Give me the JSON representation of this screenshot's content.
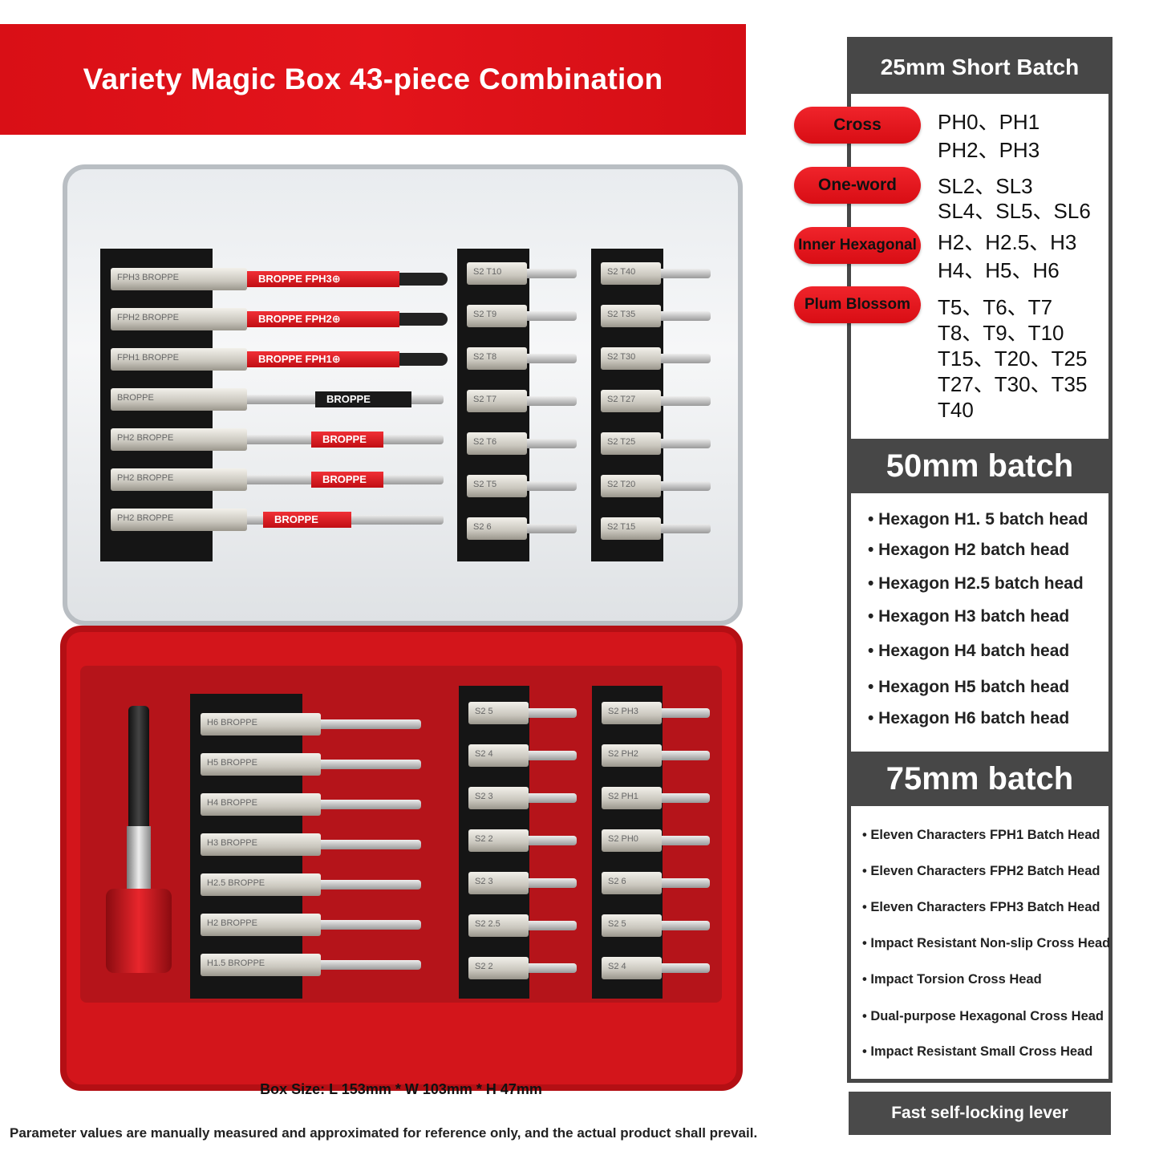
{
  "banner": {
    "title": "Variety Magic Box 43-piece Combination"
  },
  "panel": {
    "short_header": "25mm Short Batch",
    "categories": [
      {
        "label": "Cross",
        "codes": [
          "PH0、PH1",
          "PH2、PH3"
        ]
      },
      {
        "label": "One-word",
        "codes": [
          "SL2、SL3",
          "SL4、SL5、SL6"
        ]
      },
      {
        "label": "Inner Hexagonal",
        "codes": [
          "H2、H2.5、H3",
          "H4、H5、H6"
        ]
      },
      {
        "label": "Plum Blossom",
        "codes": [
          "T5、T6、T7",
          "T8、T9、T10",
          "T15、T20、T25",
          "T27、T30、T35",
          "T40"
        ]
      }
    ],
    "mid_header": "50mm batch",
    "mid_items": [
      "Hexagon H1. 5 batch head",
      "Hexagon H2 batch head",
      "Hexagon H2.5 batch head",
      "Hexagon H3 batch head",
      "Hexagon H4 batch head",
      "Hexagon H5 batch head",
      "Hexagon H6 batch head"
    ],
    "long_header": "75mm batch",
    "long_items": [
      "Eleven Characters FPH1 Batch Head",
      "Eleven Characters FPH2 Batch Head",
      "Eleven Characters FPH3 Batch Head",
      "Impact Resistant Non-slip Cross Head",
      "Impact Torsion Cross Head",
      "Dual-purpose Hexagonal Cross Head",
      "Impact Resistant Small Cross Head"
    ]
  },
  "lever_label": "Fast self-locking lever",
  "box_size": "Box Size: L 153mm * W 103mm * H 47mm",
  "disclaimer": "Parameter values are manually measured and approximated for reference only, and the actual product shall prevail.",
  "product": {
    "lid_long_bits": [
      {
        "base": "FPH3  BROPPE",
        "band": "BROPPE FPH3⊕"
      },
      {
        "base": "FPH2  BROPPE",
        "band": "BROPPE FPH2⊕"
      },
      {
        "base": "FPH1  BROPPE",
        "band": "BROPPE FPH1⊕"
      },
      {
        "base": "BROPPE",
        "band": "BROPPE"
      },
      {
        "base": "PH2  BROPPE",
        "band": "BROPPE"
      },
      {
        "base": "PH2  BROPPE",
        "band": "BROPPE"
      },
      {
        "base": "PH2  BROPPE",
        "band": "BROPPE"
      }
    ],
    "lid_col1": [
      "S2 T10",
      "S2 T9",
      "S2 T8",
      "S2 T7",
      "S2 T6",
      "S2 T5",
      "S2 6"
    ],
    "lid_col2": [
      "S2 T40",
      "S2 T35",
      "S2 T30",
      "S2 T27",
      "S2 T25",
      "S2 T20",
      "S2 T15"
    ],
    "tray_hex_bits": [
      "H6  BROPPE",
      "H5  BROPPE",
      "H4  BROPPE",
      "H3  BROPPE",
      "H2.5  BROPPE",
      "H2  BROPPE",
      "H1.5  BROPPE"
    ],
    "tray_col1": [
      "S2 5",
      "S2 4",
      "S2 3",
      "S2 2",
      "S2 3",
      "S2 2.5",
      "S2 2"
    ],
    "tray_col2": [
      "S2 PH3",
      "S2 PH2",
      "S2 PH1",
      "S2 PH0",
      "S2 6",
      "S2 5",
      "S2 4"
    ]
  },
  "colors": {
    "brand_red": "#e3141b",
    "panel_dark": "#474747"
  }
}
